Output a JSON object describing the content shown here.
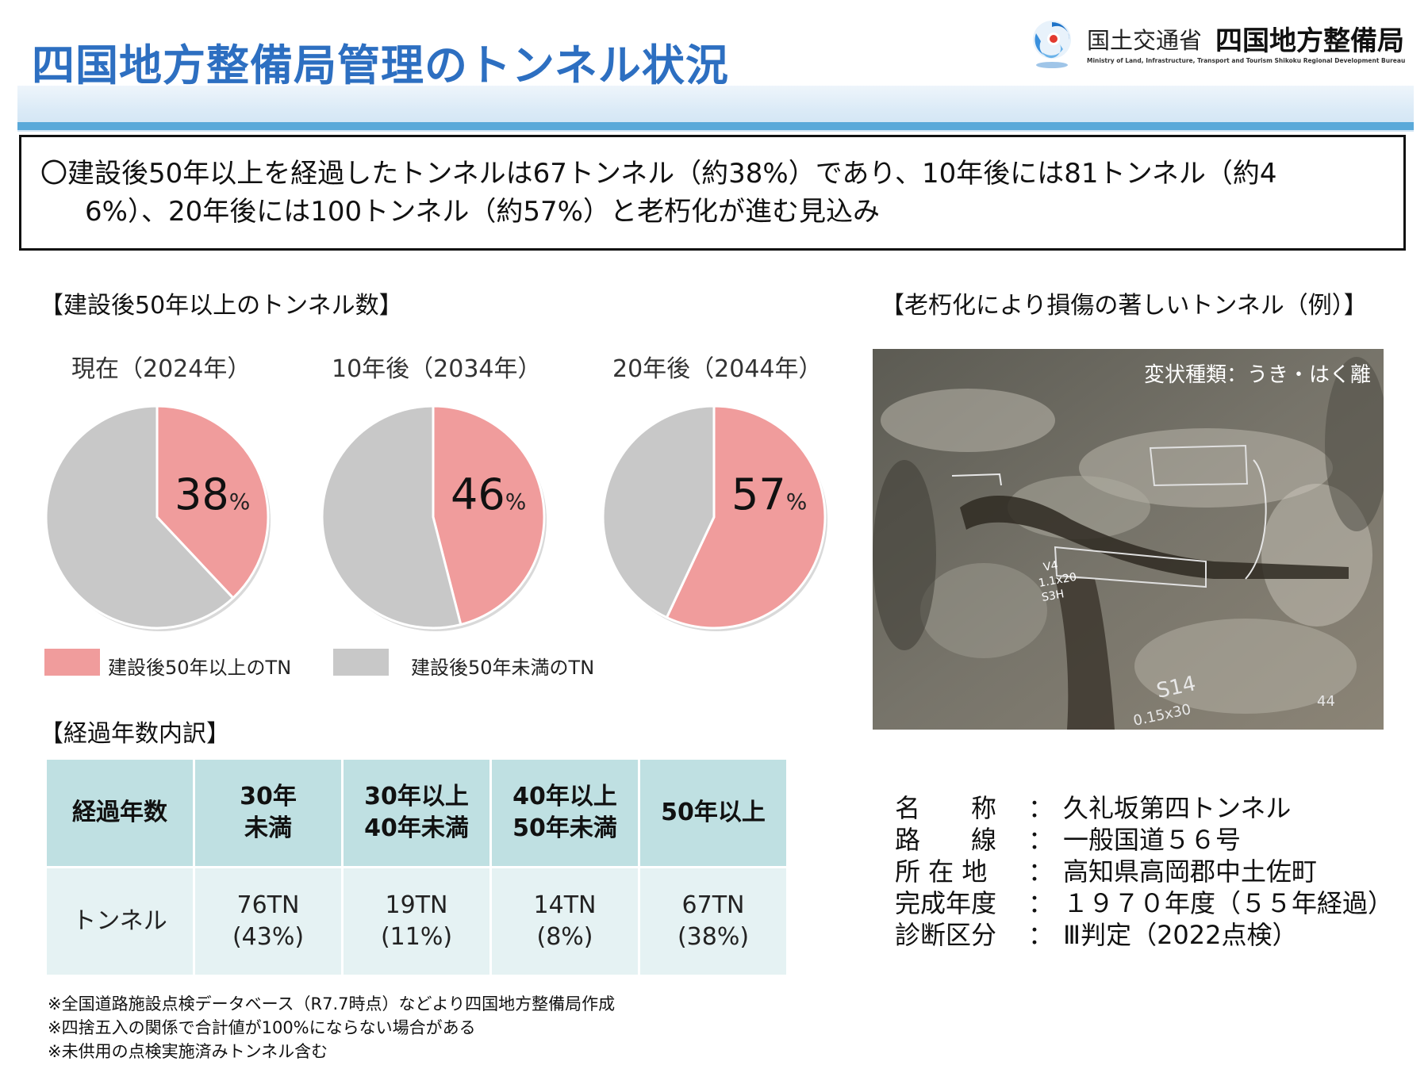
{
  "header": {
    "title": "四国地方整備局管理のトンネル状況",
    "ministry_name": "国土交通省",
    "bureau_name": "四国地方整備局",
    "ministry_en": "Ministry of Land, Infrastructure, Transport and Tourism Shikoku Regional Development Bureau"
  },
  "summary": {
    "line1": "〇建設後50年以上を経過したトンネルは67トンネル（約38%）であり、10年後には81トンネル（約4",
    "line2": "6%）、20年後には100トンネル（約57%）と老朽化が進む見込み"
  },
  "pie_section": {
    "heading": "【建設後50年以上のトンネル数】",
    "legend": [
      {
        "label": "建設後50年以上のTN",
        "color": "#f09c9c"
      },
      {
        "label": "建設後50年未満のTN",
        "color": "#c8c8c8"
      }
    ]
  },
  "chart_data": [
    {
      "type": "pie",
      "title": "現在（2024年）",
      "slices": [
        {
          "label": "建設後50年以上のTN",
          "value": 38,
          "color": "#f09c9c"
        },
        {
          "label": "建設後50年未満のTN",
          "value": 62,
          "color": "#c8c8c8"
        }
      ],
      "data_label": {
        "number": "38",
        "unit": "%"
      }
    },
    {
      "type": "pie",
      "title": "10年後（2034年）",
      "slices": [
        {
          "label": "建設後50年以上のTN",
          "value": 46,
          "color": "#f09c9c"
        },
        {
          "label": "建設後50年未満のTN",
          "value": 54,
          "color": "#c8c8c8"
        }
      ],
      "data_label": {
        "number": "46",
        "unit": "%"
      }
    },
    {
      "type": "pie",
      "title": "20年後（2044年）",
      "slices": [
        {
          "label": "建設後50年以上のTN",
          "value": 57,
          "color": "#f09c9c"
        },
        {
          "label": "建設後50年未満のTN",
          "value": 43,
          "color": "#c8c8c8"
        }
      ],
      "data_label": {
        "number": "57",
        "unit": "%"
      }
    }
  ],
  "table_section": {
    "heading": "【経過年数内訳】",
    "header_row": [
      "経過年数",
      "30年\n未満",
      "30年以上\n40年未満",
      "40年以上\n50年未満",
      "50年以上"
    ],
    "body_row": [
      "トンネル",
      "76TN\n(43%)",
      "19TN\n(11%)",
      "14TN\n(8%)",
      "67TN\n(38%)"
    ]
  },
  "notes": [
    "※全国道路施設点検データベース（R7.7時点）などより四国地方整備局作成",
    "※四捨五入の関係で合計値が100%にならない場合がある",
    "※未供用の点検実施済みトンネル含む"
  ],
  "example_section": {
    "heading": "【老朽化により損傷の著しいトンネル（例）】",
    "photo_caption": "変状種類：うき・はく離",
    "photo_marks": [
      "V4",
      "1.1x20",
      "S3H",
      "S14",
      "0.15x30",
      "44"
    ],
    "info": [
      {
        "key": "名　　称",
        "sep": "：",
        "value": "久礼坂第四トンネル"
      },
      {
        "key": "路　　線",
        "sep": "：",
        "value": "一般国道５６号"
      },
      {
        "key": "所 在 地",
        "sep": "：",
        "value": "高知県高岡郡中土佐町"
      },
      {
        "key": "完成年度",
        "sep": "：",
        "value": "１９７０年度（５５年経過）"
      },
      {
        "key": "診断区分",
        "sep": "：",
        "value": "Ⅲ判定（2022点検）"
      }
    ]
  },
  "colors": {
    "title_blue": "#2d6fc1",
    "pink": "#f09c9c",
    "gray": "#c8c8c8",
    "table_head": "#bfe0e2",
    "table_body": "#e5f2f3"
  }
}
